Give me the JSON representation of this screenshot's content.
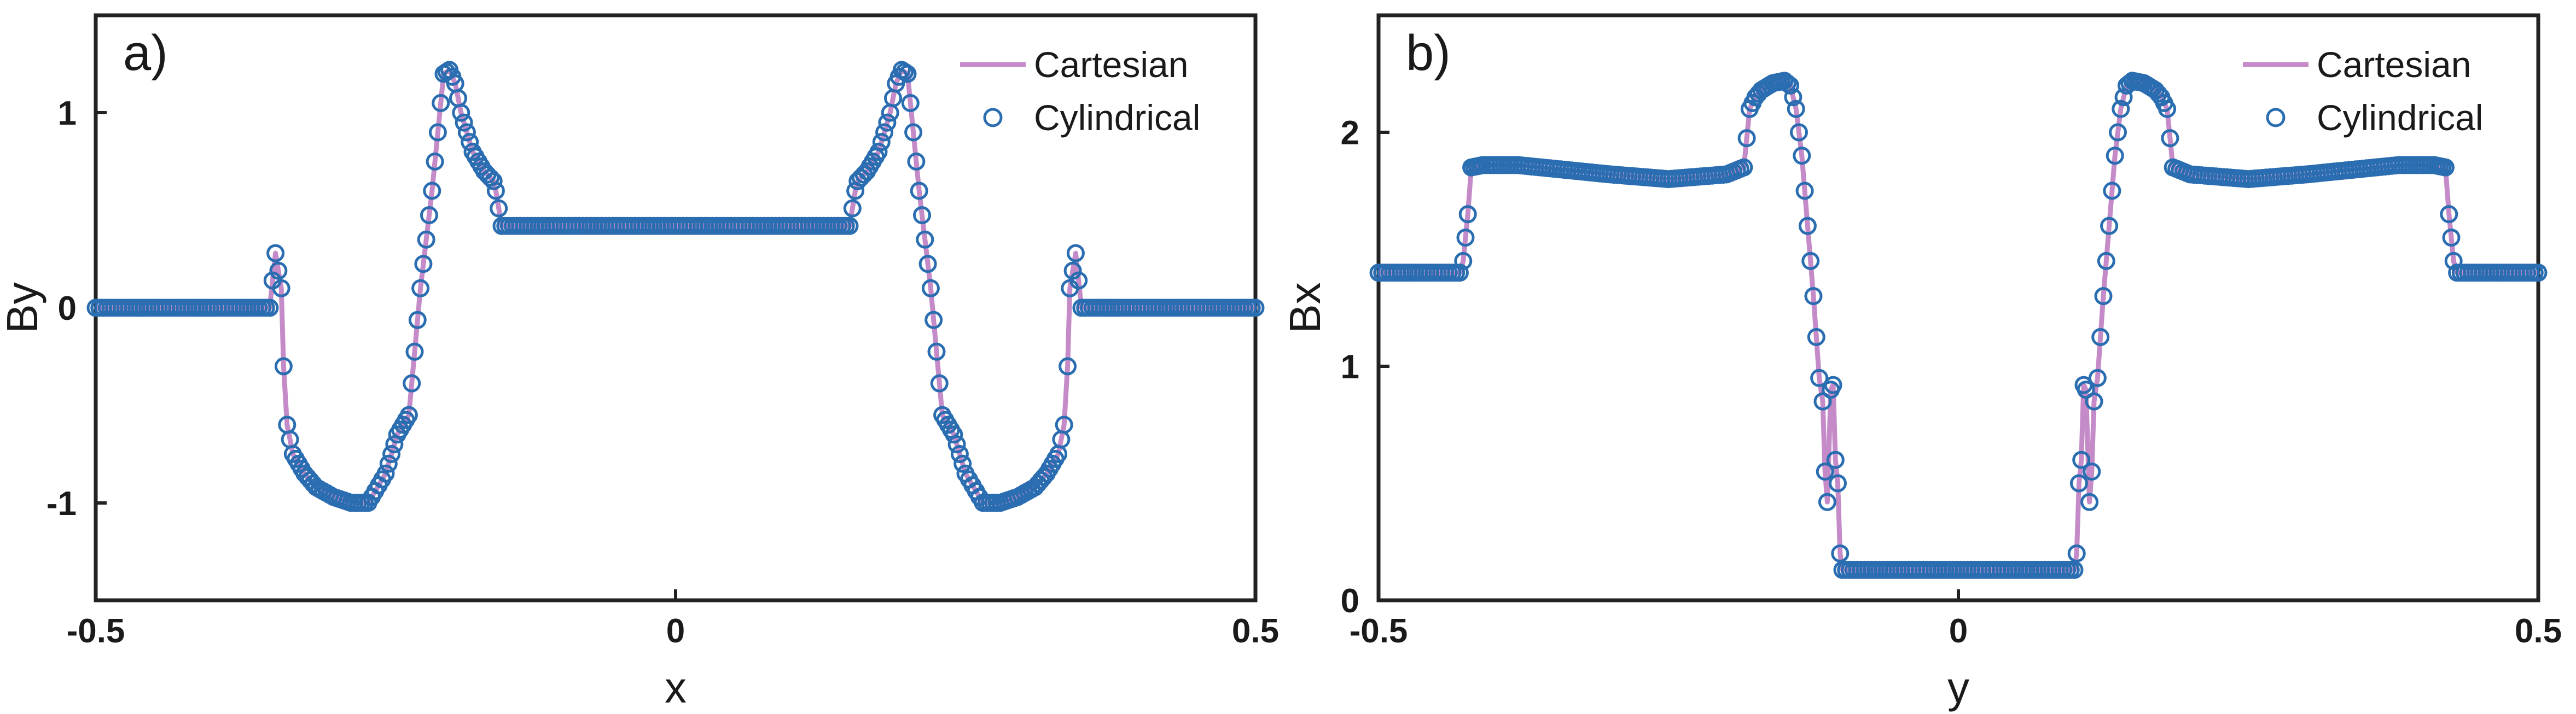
{
  "figure": {
    "colors": {
      "cartesian_line": "#C48BC8",
      "cylindrical_marker": "#2A6DB0",
      "axis": "#222222"
    }
  },
  "chart_data": [
    {
      "type": "line",
      "panel_label": "a)",
      "xlabel": "x",
      "ylabel": "By",
      "xlim": [
        -0.5,
        0.5
      ],
      "ylim": [
        -1.5,
        1.5
      ],
      "xticks": [
        -0.5,
        0,
        0.5
      ],
      "xtick_labels": [
        "-0.5",
        "0",
        "0.5"
      ],
      "yticks": [
        -1,
        0,
        1
      ],
      "ytick_labels": [
        "-1",
        "0",
        "1"
      ],
      "legend": {
        "position": "top-right",
        "entries": [
          "Cartesian",
          "Cylindrical"
        ]
      },
      "series": [
        {
          "name": "Cartesian",
          "style": "line",
          "x": [
            -0.5,
            -0.35,
            -0.345,
            -0.34,
            -0.338,
            -0.335,
            -0.33,
            -0.32,
            -0.31,
            -0.295,
            -0.28,
            -0.265,
            -0.25,
            -0.24,
            -0.23,
            -0.22,
            -0.21,
            -0.2,
            -0.195,
            -0.19,
            -0.185,
            -0.175,
            -0.165,
            -0.157,
            -0.155,
            -0.15,
            0.15,
            0.155,
            0.157,
            0.165,
            0.175,
            0.185,
            0.19,
            0.195,
            0.2,
            0.21,
            0.22,
            0.23,
            0.24,
            0.25,
            0.265,
            0.28,
            0.295,
            0.31,
            0.32,
            0.33,
            0.335,
            0.338,
            0.34,
            0.345,
            0.35,
            0.5
          ],
          "y": [
            0,
            0,
            0.28,
            0.1,
            -0.3,
            -0.6,
            -0.75,
            -0.85,
            -0.92,
            -0.97,
            -1.0,
            -1.0,
            -0.85,
            -0.65,
            -0.55,
            0.1,
            0.6,
            1.2,
            1.22,
            1.15,
            1.0,
            0.8,
            0.7,
            0.65,
            0.6,
            0.42,
            0.42,
            0.6,
            0.65,
            0.7,
            0.8,
            1.0,
            1.15,
            1.22,
            1.2,
            0.6,
            0.1,
            -0.55,
            -0.65,
            -0.85,
            -1.0,
            -1.0,
            -0.97,
            -0.92,
            -0.85,
            -0.75,
            -0.6,
            -0.3,
            0.1,
            0.28,
            0,
            0
          ]
        },
        {
          "name": "Cylindrical",
          "style": "markers",
          "x": [
            -0.5,
            -0.35,
            -0.345,
            -0.34,
            -0.338,
            -0.335,
            -0.33,
            -0.32,
            -0.31,
            -0.295,
            -0.28,
            -0.265,
            -0.25,
            -0.24,
            -0.23,
            -0.22,
            -0.21,
            -0.2,
            -0.195,
            -0.19,
            -0.185,
            -0.175,
            -0.165,
            -0.157,
            -0.155,
            -0.15,
            0.15,
            0.155,
            0.157,
            0.165,
            0.175,
            0.185,
            0.19,
            0.195,
            0.2,
            0.21,
            0.22,
            0.23,
            0.24,
            0.25,
            0.265,
            0.28,
            0.295,
            0.31,
            0.32,
            0.33,
            0.335,
            0.338,
            0.34,
            0.345,
            0.35,
            0.5
          ],
          "y": [
            0,
            0,
            0.28,
            0.1,
            -0.3,
            -0.6,
            -0.75,
            -0.85,
            -0.92,
            -0.97,
            -1.0,
            -1.0,
            -0.85,
            -0.65,
            -0.55,
            0.1,
            0.6,
            1.2,
            1.22,
            1.15,
            1.0,
            0.8,
            0.7,
            0.65,
            0.6,
            0.42,
            0.42,
            0.6,
            0.65,
            0.7,
            0.8,
            1.0,
            1.15,
            1.22,
            1.2,
            0.6,
            0.1,
            -0.55,
            -0.65,
            -0.85,
            -1.0,
            -1.0,
            -0.97,
            -0.92,
            -0.85,
            -0.75,
            -0.6,
            -0.3,
            0.1,
            0.28,
            0,
            0
          ]
        }
      ]
    },
    {
      "type": "line",
      "panel_label": "b)",
      "xlabel": "y",
      "ylabel": "Bx",
      "xlim": [
        -0.5,
        0.5
      ],
      "ylim": [
        0,
        2.5
      ],
      "xticks": [
        -0.5,
        0,
        0.5
      ],
      "xtick_labels": [
        "-0.5",
        "0",
        "0.5"
      ],
      "yticks": [
        0,
        1,
        2
      ],
      "ytick_labels": [
        "0",
        "1",
        "2"
      ],
      "legend": {
        "position": "top-right",
        "entries": [
          "Cartesian",
          "Cylindrical"
        ]
      },
      "series": [
        {
          "name": "Cartesian",
          "style": "line",
          "x": [
            -0.5,
            -0.43,
            -0.427,
            -0.423,
            -0.42,
            -0.41,
            -0.38,
            -0.3,
            -0.25,
            -0.2,
            -0.185,
            -0.18,
            -0.175,
            -0.17,
            -0.16,
            -0.15,
            -0.145,
            -0.14,
            -0.135,
            -0.13,
            -0.125,
            -0.12,
            -0.117,
            -0.115,
            -0.113,
            -0.11,
            -0.108,
            -0.106,
            -0.104,
            -0.102,
            -0.1,
            0.1,
            0.102,
            0.104,
            0.106,
            0.108,
            0.11,
            0.113,
            0.115,
            0.117,
            0.12,
            0.125,
            0.13,
            0.135,
            0.14,
            0.145,
            0.15,
            0.16,
            0.17,
            0.175,
            0.18,
            0.185,
            0.2,
            0.25,
            0.3,
            0.38,
            0.41,
            0.42,
            0.423,
            0.427,
            0.43,
            0.5
          ],
          "y": [
            1.4,
            1.4,
            1.45,
            1.65,
            1.85,
            1.86,
            1.86,
            1.82,
            1.8,
            1.82,
            1.85,
            2.1,
            2.15,
            2.18,
            2.21,
            2.22,
            2.2,
            2.1,
            1.9,
            1.6,
            1.3,
            0.95,
            0.85,
            0.55,
            0.42,
            0.9,
            0.92,
            0.6,
            0.5,
            0.2,
            0.13,
            0.13,
            0.2,
            0.5,
            0.6,
            0.92,
            0.9,
            0.42,
            0.55,
            0.85,
            0.95,
            1.3,
            1.6,
            1.9,
            2.1,
            2.2,
            2.22,
            2.21,
            2.18,
            2.15,
            2.1,
            1.85,
            1.82,
            1.8,
            1.82,
            1.86,
            1.86,
            1.85,
            1.65,
            1.45,
            1.4,
            1.4
          ]
        },
        {
          "name": "Cylindrical",
          "style": "markers",
          "x": [
            -0.5,
            -0.43,
            -0.427,
            -0.423,
            -0.42,
            -0.41,
            -0.38,
            -0.3,
            -0.25,
            -0.2,
            -0.185,
            -0.18,
            -0.175,
            -0.17,
            -0.16,
            -0.15,
            -0.145,
            -0.14,
            -0.135,
            -0.13,
            -0.125,
            -0.12,
            -0.117,
            -0.115,
            -0.113,
            -0.11,
            -0.108,
            -0.106,
            -0.104,
            -0.102,
            -0.1,
            0.1,
            0.102,
            0.104,
            0.106,
            0.108,
            0.11,
            0.113,
            0.115,
            0.117,
            0.12,
            0.125,
            0.13,
            0.135,
            0.14,
            0.145,
            0.15,
            0.16,
            0.17,
            0.175,
            0.18,
            0.185,
            0.2,
            0.25,
            0.3,
            0.38,
            0.41,
            0.42,
            0.423,
            0.427,
            0.43,
            0.5
          ],
          "y": [
            1.4,
            1.4,
            1.45,
            1.65,
            1.85,
            1.86,
            1.86,
            1.82,
            1.8,
            1.82,
            1.85,
            2.1,
            2.15,
            2.18,
            2.21,
            2.22,
            2.2,
            2.1,
            1.9,
            1.6,
            1.3,
            0.95,
            0.85,
            0.55,
            0.42,
            0.9,
            0.92,
            0.6,
            0.5,
            0.2,
            0.13,
            0.13,
            0.2,
            0.5,
            0.6,
            0.92,
            0.9,
            0.42,
            0.55,
            0.85,
            0.95,
            1.3,
            1.6,
            1.9,
            2.1,
            2.2,
            2.22,
            2.21,
            2.18,
            2.15,
            2.1,
            1.85,
            1.82,
            1.8,
            1.82,
            1.86,
            1.86,
            1.85,
            1.65,
            1.45,
            1.4,
            1.4
          ]
        }
      ]
    }
  ]
}
